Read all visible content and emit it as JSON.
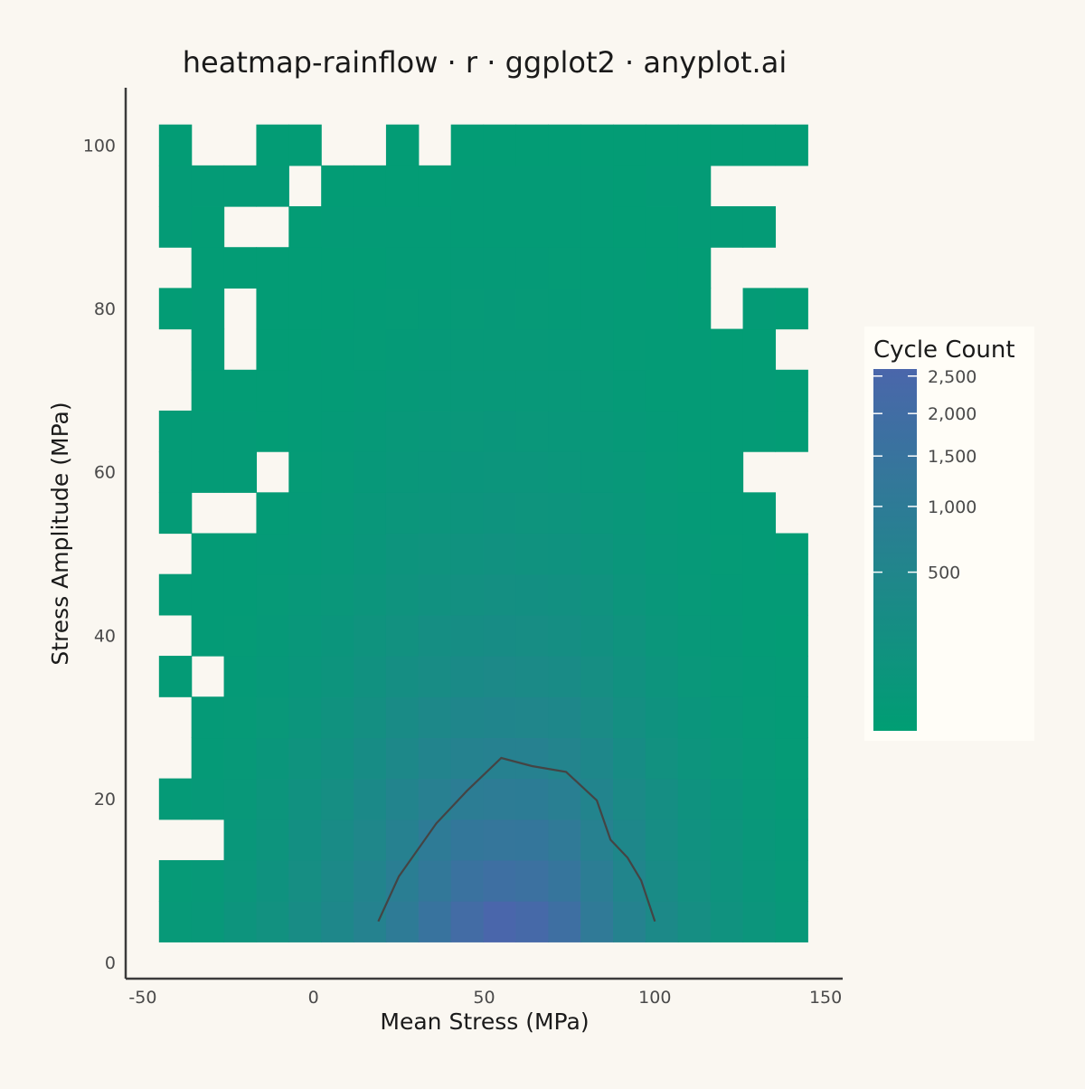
{
  "chart_data": {
    "type": "heatmap",
    "title": "heatmap-rainflow · r · ggplot2 · anyplot.ai",
    "xlabel": "Mean Stress (MPa)",
    "ylabel": "Stress Amplitude (MPa)",
    "xlim": [
      -55,
      155
    ],
    "ylim": [
      -2,
      107
    ],
    "x_ticks": [
      -50,
      0,
      50,
      100,
      150
    ],
    "y_ticks": [
      0,
      20,
      40,
      60,
      80,
      100
    ],
    "x_tick_labels": [
      "-50",
      "0",
      "50",
      "100",
      "150"
    ],
    "y_tick_labels": [
      "0",
      "20",
      "40",
      "60",
      "80",
      "100"
    ],
    "grid": false,
    "bin_width_x": 9.5,
    "bin_width_y": 5,
    "x_bin_centers": [
      -40.5,
      -31,
      -21.5,
      -12,
      -2.5,
      7,
      16.5,
      26,
      35.5,
      45,
      54.5,
      64,
      73.5,
      83,
      92.5,
      102,
      111.5,
      121,
      130.5,
      140
    ],
    "y_bin_centers": [
      5,
      10,
      15,
      20,
      25,
      30,
      35,
      40,
      45,
      50,
      55,
      60,
      65,
      70,
      75,
      80,
      85,
      90,
      95,
      100
    ],
    "values": [
      [
        22,
        28,
        75,
        150,
        280,
        420,
        650,
        1000,
        1500,
        2100,
        2600,
        2300,
        1800,
        1100,
        650,
        380,
        220,
        120,
        70,
        30
      ],
      [
        16,
        24,
        55,
        110,
        220,
        360,
        560,
        850,
        1200,
        1600,
        1800,
        1700,
        1400,
        900,
        520,
        300,
        170,
        95,
        50,
        22
      ],
      [
        0,
        0,
        40,
        85,
        180,
        290,
        450,
        700,
        1000,
        1250,
        1350,
        1300,
        1100,
        720,
        430,
        250,
        140,
        80,
        40,
        18
      ],
      [
        12,
        18,
        30,
        65,
        140,
        220,
        350,
        540,
        760,
        900,
        980,
        940,
        800,
        560,
        340,
        200,
        110,
        60,
        30,
        14
      ],
      [
        0,
        14,
        22,
        48,
        100,
        160,
        260,
        400,
        550,
        650,
        700,
        680,
        580,
        420,
        260,
        150,
        85,
        45,
        22,
        10
      ],
      [
        0,
        11,
        16,
        35,
        72,
        115,
        190,
        290,
        390,
        460,
        500,
        480,
        420,
        310,
        190,
        110,
        62,
        32,
        16,
        8
      ],
      [
        8,
        0,
        12,
        26,
        52,
        85,
        140,
        210,
        280,
        330,
        360,
        345,
        300,
        225,
        140,
        80,
        45,
        23,
        12,
        6
      ],
      [
        0,
        7,
        10,
        20,
        38,
        62,
        100,
        150,
        200,
        235,
        255,
        245,
        215,
        160,
        100,
        58,
        32,
        17,
        9,
        5
      ],
      [
        9,
        6,
        8,
        15,
        28,
        45,
        72,
        108,
        143,
        168,
        182,
        175,
        155,
        115,
        72,
        42,
        24,
        13,
        8,
        6
      ],
      [
        0,
        6,
        7,
        11,
        20,
        32,
        52,
        77,
        102,
        120,
        130,
        125,
        110,
        82,
        52,
        30,
        17,
        10,
        6,
        5
      ],
      [
        7,
        0,
        0,
        8,
        14,
        23,
        37,
        55,
        73,
        86,
        93,
        90,
        79,
        59,
        37,
        22,
        13,
        8,
        7,
        0
      ],
      [
        8,
        7,
        6,
        0,
        10,
        16,
        26,
        39,
        52,
        61,
        66,
        64,
        56,
        42,
        27,
        16,
        10,
        9,
        0,
        0
      ],
      [
        7,
        6,
        6,
        5,
        8,
        12,
        19,
        28,
        37,
        43,
        47,
        45,
        40,
        30,
        19,
        12,
        8,
        7,
        6,
        5
      ],
      [
        0,
        5,
        5,
        5,
        6,
        9,
        13,
        20,
        26,
        31,
        33,
        32,
        28,
        21,
        14,
        9,
        7,
        6,
        6,
        5
      ],
      [
        0,
        6,
        0,
        5,
        5,
        7,
        10,
        14,
        19,
        22,
        24,
        23,
        20,
        15,
        10,
        7,
        6,
        5,
        5,
        0
      ],
      [
        5,
        6,
        0,
        5,
        5,
        5,
        7,
        10,
        13,
        16,
        17,
        16,
        14,
        11,
        8,
        6,
        5,
        0,
        6,
        5
      ],
      [
        0,
        5,
        5,
        5,
        5,
        5,
        5,
        7,
        9,
        11,
        12,
        11,
        10,
        8,
        6,
        5,
        5,
        0,
        0,
        0
      ],
      [
        6,
        5,
        0,
        0,
        5,
        6,
        6,
        7,
        7,
        8,
        7,
        7,
        6,
        6,
        5,
        5,
        6,
        6,
        6,
        0
      ],
      [
        6,
        7,
        7,
        6,
        0,
        5,
        5,
        5,
        5,
        6,
        6,
        6,
        6,
        6,
        5,
        6,
        6,
        0,
        0,
        0
      ],
      [
        5,
        0,
        0,
        5,
        5,
        0,
        0,
        5,
        0,
        5,
        5,
        5,
        5,
        5,
        5,
        5,
        5,
        5,
        5,
        5
      ]
    ],
    "contour": [
      [
        19,
        5
      ],
      [
        25,
        10.5
      ],
      [
        36,
        17
      ],
      [
        45,
        21
      ],
      [
        55,
        25
      ],
      [
        64,
        24
      ],
      [
        74,
        23.3
      ],
      [
        83,
        19.8
      ],
      [
        87,
        15
      ],
      [
        92,
        12.8
      ],
      [
        96,
        10
      ],
      [
        100,
        5
      ]
    ],
    "legend": {
      "title": "Cycle Count",
      "placement": "right",
      "scale": "sqrt",
      "range": [
        0,
        2600
      ],
      "breaks": [
        500,
        1000,
        1500,
        2000,
        2500
      ],
      "break_labels": [
        "500",
        "1,000",
        "1,500",
        "2,000",
        "2,500"
      ]
    },
    "colors": {
      "low": "#009e73",
      "high": "#4a66ab",
      "background": "#faf7f1",
      "legend_bg": "#fffdf7",
      "axis": "#3b3b3b",
      "contour": "#444444"
    }
  }
}
